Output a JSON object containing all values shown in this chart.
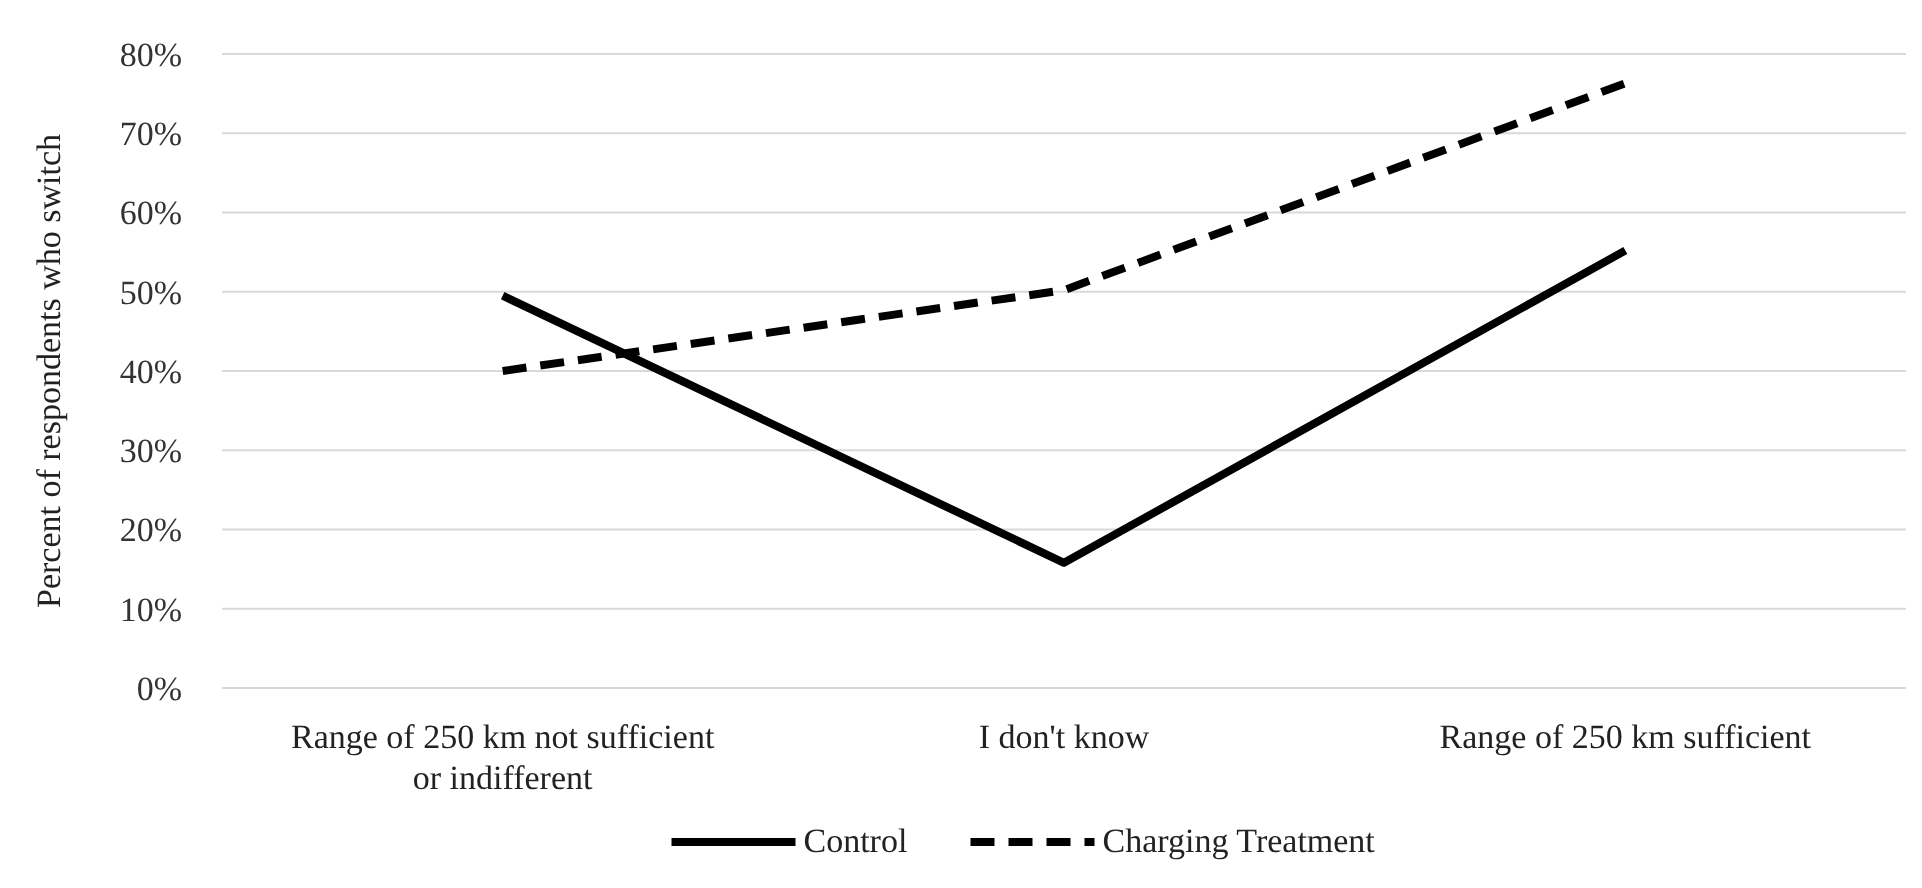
{
  "chart_data": {
    "type": "line",
    "ylabel": "Percent of respondents who switch",
    "categories": [
      "Range of 250 km not sufficient\nor indifferent",
      "I don't know",
      "Range of 250 km sufficient"
    ],
    "series": [
      {
        "name": "Control",
        "color": "#000000",
        "values": [
          49.5,
          15.8,
          55.2
        ],
        "line_style": "solid"
      },
      {
        "name": "Charging Treatment",
        "color": "#000000",
        "values": [
          40,
          50.2,
          76.3
        ],
        "line_style": "dashed"
      }
    ],
    "ylim": [
      0,
      80
    ],
    "yticks": [
      {
        "value": 0,
        "label": "0%"
      },
      {
        "value": 10,
        "label": "10%"
      },
      {
        "value": 20,
        "label": "20%"
      },
      {
        "value": 30,
        "label": "30%"
      },
      {
        "value": 40,
        "label": "40%"
      },
      {
        "value": 50,
        "label": "50%"
      },
      {
        "value": 60,
        "label": "60%"
      },
      {
        "value": 70,
        "label": "70%"
      },
      {
        "value": 80,
        "label": "80%"
      }
    ],
    "grid": "y",
    "legend": "bottom",
    "marker": "none"
  }
}
